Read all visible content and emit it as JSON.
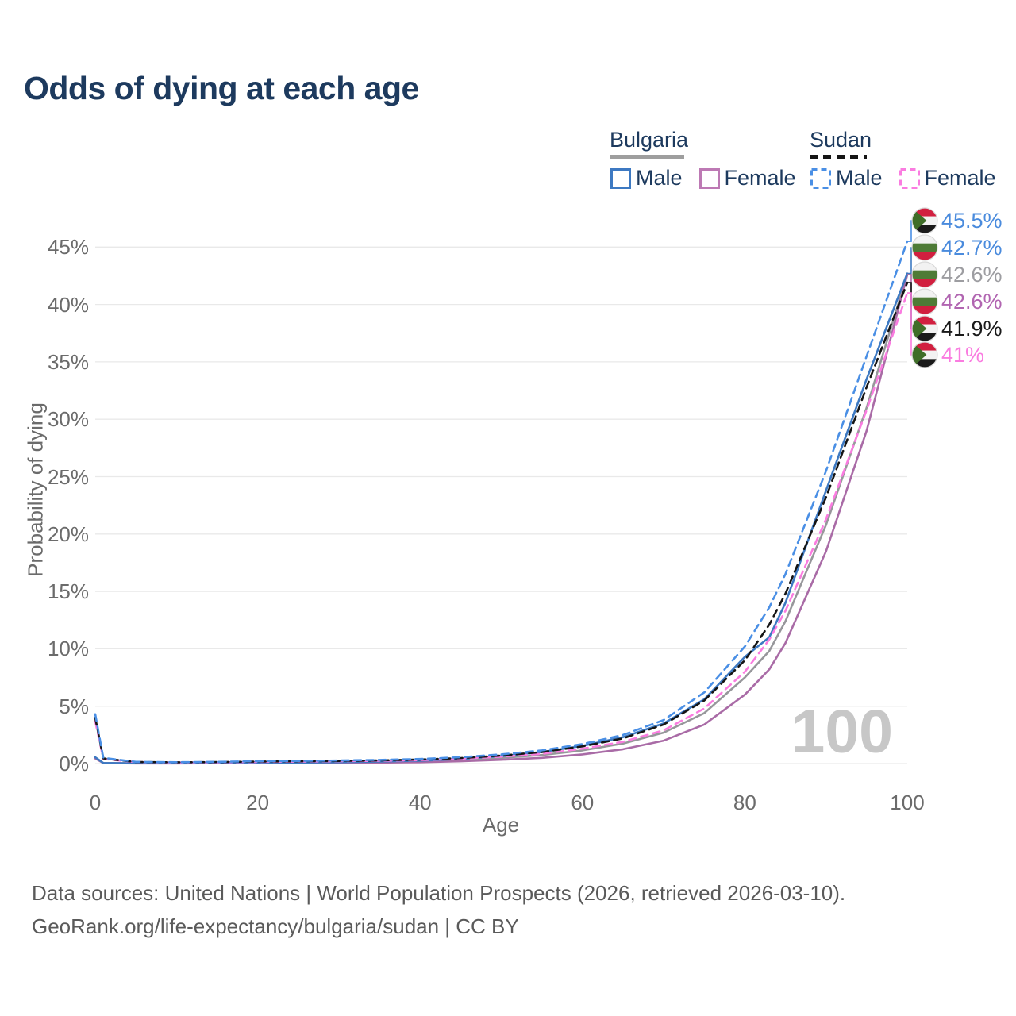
{
  "title": "Odds of dying at each age",
  "watermark": "100",
  "legend": {
    "groups": [
      {
        "name": "Bulgaria",
        "line_style": "solid",
        "underline_color": "#9e9e9e",
        "items": [
          {
            "label": "Male",
            "color": "#3d79c2"
          },
          {
            "label": "Female",
            "color": "#bd79b4"
          }
        ]
      },
      {
        "name": "Sudan",
        "line_style": "dashed",
        "underline_color": "#151515",
        "items": [
          {
            "label": "Male",
            "color": "#4a8fe5"
          },
          {
            "label": "Female",
            "color": "#fa7ce0"
          }
        ]
      }
    ]
  },
  "chart_data": {
    "type": "line",
    "title": "Odds of dying at each age",
    "xlabel": "Age",
    "ylabel": "Probability of dying",
    "xlim": [
      0,
      100
    ],
    "ylim": [
      0,
      48
    ],
    "x_ticks": [
      0,
      20,
      40,
      60,
      80,
      100
    ],
    "y_ticks": [
      0,
      5,
      10,
      15,
      20,
      25,
      30,
      35,
      40,
      45
    ],
    "y_tick_suffix": "%",
    "grid": "horizontal",
    "legend_position": "top-right",
    "x": [
      0,
      1,
      5,
      10,
      15,
      20,
      25,
      30,
      35,
      40,
      45,
      50,
      55,
      60,
      65,
      70,
      75,
      80,
      83,
      85,
      90,
      95,
      100
    ],
    "series": [
      {
        "id": "sudan_male",
        "name": "Sudan Male",
        "country": "sudan",
        "dashed": true,
        "color": "#4a8fe5",
        "end_label": "45.5%",
        "end_value": 45.5,
        "label_color": "#4a8bdd",
        "values": [
          4.3,
          0.5,
          0.15,
          0.12,
          0.15,
          0.2,
          0.23,
          0.27,
          0.32,
          0.4,
          0.55,
          0.8,
          1.15,
          1.7,
          2.5,
          3.8,
          6.2,
          10.2,
          13.6,
          16.5,
          25.5,
          35.5,
          45.5
        ]
      },
      {
        "id": "bulgaria_male",
        "name": "Bulgaria Male",
        "country": "bulgaria",
        "dashed": false,
        "color": "#3d79c2",
        "end_label": "42.7%",
        "end_value": 42.7,
        "label_color": "#4a8bdd",
        "values": [
          0.55,
          0.05,
          0.02,
          0.02,
          0.04,
          0.07,
          0.09,
          0.12,
          0.17,
          0.25,
          0.4,
          0.65,
          1.0,
          1.55,
          2.3,
          3.5,
          5.6,
          9.3,
          11.0,
          14.0,
          23.8,
          33.5,
          42.7
        ]
      },
      {
        "id": "bulgaria_both",
        "name": "Bulgaria Both sexes",
        "country": "bulgaria",
        "dashed": false,
        "color": "#97979b",
        "end_label": "42.6%",
        "end_value": 42.6,
        "label_color": "#9d9da1",
        "values": [
          0.5,
          0.045,
          0.02,
          0.02,
          0.03,
          0.05,
          0.07,
          0.09,
          0.13,
          0.19,
          0.3,
          0.5,
          0.75,
          1.15,
          1.75,
          2.7,
          4.4,
          7.5,
          9.8,
          12.4,
          20.8,
          31.0,
          42.6
        ]
      },
      {
        "id": "bulgaria_female",
        "name": "Bulgaria Female",
        "country": "bulgaria",
        "dashed": false,
        "color": "#a96ba6",
        "end_label": "42.6%",
        "end_value": 42.6,
        "label_color": "#b165b1",
        "values": [
          0.45,
          0.04,
          0.015,
          0.015,
          0.02,
          0.03,
          0.04,
          0.06,
          0.08,
          0.12,
          0.2,
          0.33,
          0.5,
          0.8,
          1.25,
          2.0,
          3.4,
          6.0,
          8.2,
          10.5,
          18.5,
          29.0,
          42.6
        ]
      },
      {
        "id": "sudan_both",
        "name": "Sudan Both sexes",
        "country": "sudan",
        "dashed": true,
        "color": "#151515",
        "end_label": "41.9%",
        "end_value": 41.9,
        "label_color": "#1a1a1a",
        "values": [
          4.0,
          0.45,
          0.14,
          0.11,
          0.13,
          0.17,
          0.2,
          0.23,
          0.28,
          0.35,
          0.48,
          0.7,
          1.0,
          1.5,
          2.2,
          3.4,
          5.5,
          9.0,
          12.1,
          14.8,
          23.2,
          32.8,
          41.9
        ]
      },
      {
        "id": "sudan_female",
        "name": "Sudan Female",
        "country": "sudan",
        "dashed": true,
        "color": "#fa7ce0",
        "end_label": "41%",
        "end_value": 41.0,
        "label_color": "#fa7ce0",
        "values": [
          3.7,
          0.4,
          0.13,
          0.1,
          0.11,
          0.14,
          0.17,
          0.2,
          0.24,
          0.3,
          0.42,
          0.6,
          0.85,
          1.3,
          1.9,
          2.9,
          4.8,
          8.0,
          10.8,
          13.3,
          21.3,
          30.8,
          41.0
        ]
      }
    ],
    "flag_colors": {
      "bulgaria": {
        "white": "#f2f2f2",
        "green": "#4e7b36",
        "red": "#d11f3f"
      },
      "sudan": {
        "red": "#d11f3f",
        "white": "#f2f2f2",
        "black": "#1a1a1a",
        "green": "#3f6d28"
      }
    }
  },
  "footer": {
    "line1": "Data sources: United Nations | World Population Prospects (2026, retrieved 2026-03-10).",
    "line2": "GeoRank.org/life-expectancy/bulgaria/sudan | CC BY"
  }
}
